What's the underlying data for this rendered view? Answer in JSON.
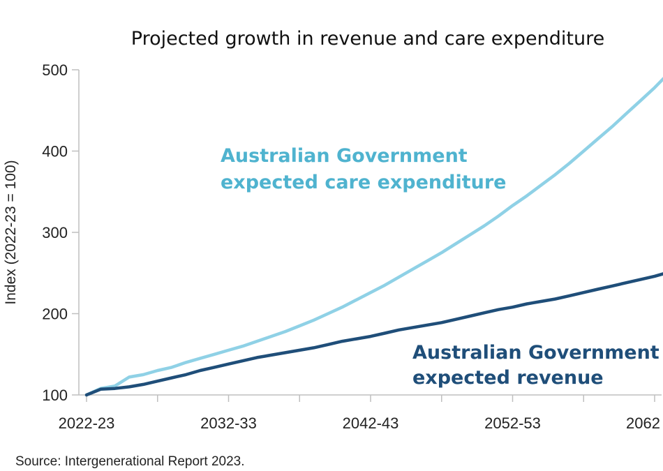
{
  "chart_data": {
    "type": "line",
    "title": "Projected growth in revenue and care expenditure",
    "ylabel": "Index (2022-23 = 100)",
    "xlabel": "",
    "ylim": [
      100,
      500
    ],
    "yticks": [
      "100",
      "200",
      "300",
      "400",
      "500"
    ],
    "xticks": [
      "2022-23",
      "2032-33",
      "2042-43",
      "2052-53",
      "2062"
    ],
    "xlim": [
      2022,
      2063
    ],
    "grid": false,
    "source": "Source: Intergenerational Report 2023.",
    "colors": {
      "expenditure": "#8fd1e6",
      "revenue": "#1f4e79",
      "expenditure_label": "#4fb3cf",
      "revenue_label": "#1f4e79"
    },
    "annotations": [
      {
        "series": "expenditure",
        "lines": [
          "Australian Government",
          "expected care expenditure"
        ]
      },
      {
        "series": "revenue",
        "lines": [
          "Australian Government",
          "expected revenue"
        ]
      }
    ],
    "x": [
      2022,
      2023,
      2024,
      2025,
      2026,
      2027,
      2028,
      2029,
      2030,
      2031,
      2032,
      2033,
      2034,
      2035,
      2036,
      2037,
      2038,
      2039,
      2040,
      2041,
      2042,
      2043,
      2044,
      2045,
      2046,
      2047,
      2048,
      2049,
      2050,
      2051,
      2052,
      2053,
      2054,
      2055,
      2056,
      2057,
      2058,
      2059,
      2060,
      2061,
      2062,
      2063
    ],
    "series": [
      {
        "key": "expenditure",
        "values": [
          100,
          108,
          111,
          122,
          125,
          130,
          134,
          140,
          145,
          150,
          155,
          160,
          166,
          172,
          178,
          185,
          192,
          200,
          208,
          217,
          226,
          235,
          245,
          255,
          265,
          275,
          286,
          297,
          308,
          320,
          333,
          345,
          358,
          371,
          385,
          400,
          415,
          430,
          446,
          462,
          478,
          496
        ]
      },
      {
        "key": "revenue",
        "values": [
          100,
          107,
          108,
          110,
          113,
          117,
          121,
          125,
          130,
          134,
          138,
          142,
          146,
          149,
          152,
          155,
          158,
          162,
          166,
          169,
          172,
          176,
          180,
          183,
          186,
          189,
          193,
          197,
          201,
          205,
          208,
          212,
          215,
          218,
          222,
          226,
          230,
          234,
          238,
          242,
          246,
          251
        ]
      }
    ]
  }
}
